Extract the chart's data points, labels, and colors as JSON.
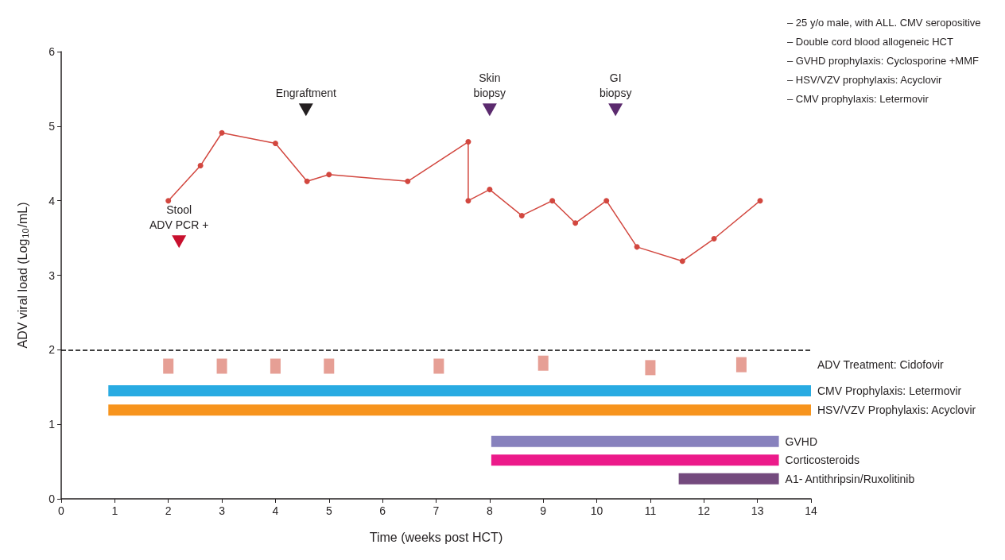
{
  "chart_data": {
    "type": "line",
    "xlabel": "Time (weeks post HCT)",
    "ylabel": "ADV viral load (Log$_{10}$/mL)",
    "xlim": [
      0,
      14
    ],
    "xticks": [
      0,
      1,
      2,
      3,
      4,
      5,
      6,
      7,
      8,
      9,
      10,
      11,
      12,
      13,
      14
    ],
    "ylim": [
      0,
      6
    ],
    "yticks": [
      0,
      1,
      2,
      3,
      4,
      5,
      6
    ],
    "grid": false,
    "legend": false,
    "marker": "circle",
    "line_style": "solid",
    "series": [
      {
        "color": "#d2473f",
        "x": [
          2,
          2.6,
          3,
          4,
          4.59,
          5,
          6.47,
          7.6,
          7.6,
          8,
          8.6,
          9.17,
          9.6,
          10.18,
          10.75,
          11.6,
          12.19,
          13.05
        ],
        "values": [
          4.0,
          4.47,
          4.91,
          4.77,
          4.26,
          4.35,
          4.26,
          4.79,
          4.0,
          4.15,
          3.8,
          4.0,
          3.7,
          4.0,
          3.38,
          3.19,
          3.49,
          4.0
        ]
      },
      {
        "type": "scatter",
        "marker": "square",
        "name": "ADV Treatment: Cidofovir",
        "color": "#e0877b",
        "x": [
          2,
          3,
          4,
          5,
          7.05,
          9,
          11,
          12.7
        ],
        "values": [
          1.78,
          1.78,
          1.78,
          1.78,
          1.78,
          1.82,
          1.76,
          1.8
        ]
      },
      {
        "type": "line",
        "marker": "none",
        "name": "CMV Prophylaxis: Letermovir",
        "color": "#29abe2",
        "x": [
          0.88,
          14
        ],
        "values": [
          1.45,
          1.45
        ]
      },
      {
        "type": "line",
        "marker": "none",
        "name": "HSV/VZV Prophylaxis: Acyclovir",
        "color": "#f7941d",
        "x": [
          0.88,
          14
        ],
        "values": [
          1.19,
          1.19
        ]
      },
      {
        "type": "line",
        "marker": "none",
        "name": "GVHD",
        "color": "#8781bd",
        "x": [
          8.03,
          13.4
        ],
        "values": [
          0.77,
          0.77
        ]
      },
      {
        "type": "line",
        "marker": "none",
        "name": "Corticosteroids",
        "color": "#ec1a8a",
        "x": [
          8.03,
          13.4
        ],
        "values": [
          0.52,
          0.52
        ]
      },
      {
        "type": "line",
        "marker": "none",
        "name": "A1- Antithripsin/Ruxolitinib",
        "color": "#744a7e",
        "x": [
          11.53,
          13.4
        ],
        "values": [
          0.27,
          0.27
        ]
      },
      {
        "type": "scatter",
        "marker": "triangle",
        "x": [
          2.2,
          4.57,
          8.0,
          10.35
        ],
        "values": [
          3.45,
          5.22,
          5.22,
          5.22
        ],
        "colors": [
          "#c8102e",
          "#231f20",
          "#5b2a6e",
          "#5b2a6e"
        ]
      }
    ],
    "ref_lines": [
      {
        "axis": "y",
        "value": 2,
        "color": "#000000",
        "line_style": "dashed"
      }
    ],
    "annotations": [
      {
        "text": "Stool\nADV PCR +",
        "x": 2.2,
        "y": 3.45
      },
      {
        "text": "Engraftment",
        "x": 4.57,
        "y": 5.22
      },
      {
        "text": "Skin\nbiopsy",
        "x": 8.0,
        "y": 5.22
      },
      {
        "text": "GI\nbiopsy",
        "x": 10.35,
        "y": 5.22
      },
      "– 25 y/o male, with ALL. CMV seropositive",
      "– Double cord blood allogeneic HCT",
      "– GVHD prophylaxis: Cyclosporine +MMF",
      "– HSV/VZV prophylaxis: Acyclovir",
      "– CMV prophylaxis: Letermovir"
    ]
  }
}
